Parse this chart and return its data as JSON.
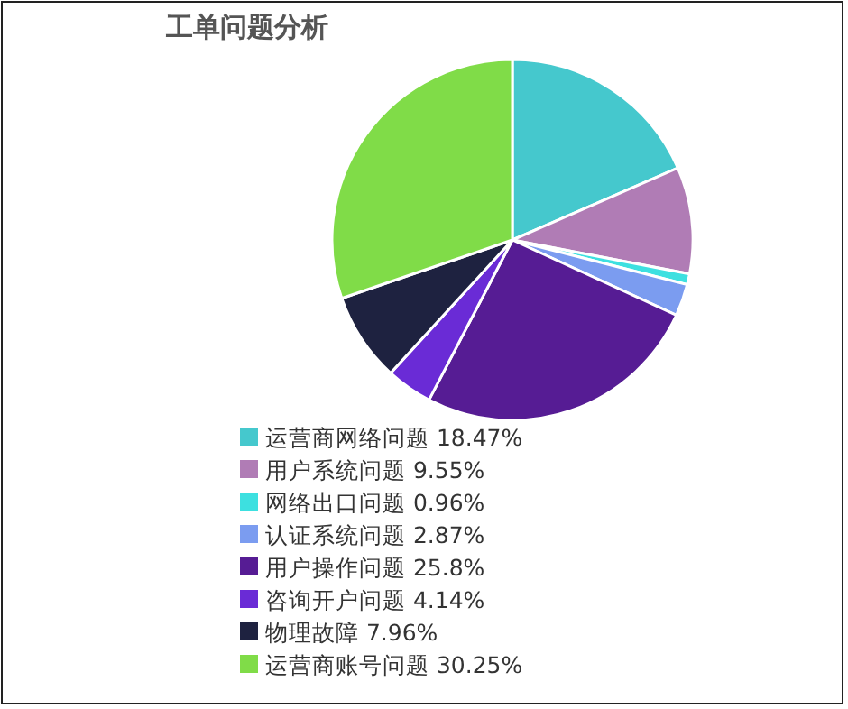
{
  "chart_data": {
    "type": "pie",
    "title": "工单问题分析",
    "categories": [
      "运营商网络问题",
      "用户系统问题",
      "网络出口问题",
      "认证系统问题",
      "用户操作问题",
      "咨询开户问题",
      "物理故障",
      "运营商账号问题"
    ],
    "values": [
      18.47,
      9.55,
      0.96,
      2.87,
      25.8,
      4.14,
      7.96,
      30.25
    ],
    "value_labels": [
      "18.47%",
      "9.55%",
      "0.96%",
      "2.87%",
      "25.8%",
      "4.14%",
      "7.96%",
      "30.25%"
    ],
    "colors": [
      "#45c8cd",
      "#b07cb5",
      "#3de0e0",
      "#7b9cf0",
      "#561c94",
      "#6a2bd6",
      "#1e2240",
      "#80dc48"
    ],
    "legend": "bottom"
  }
}
